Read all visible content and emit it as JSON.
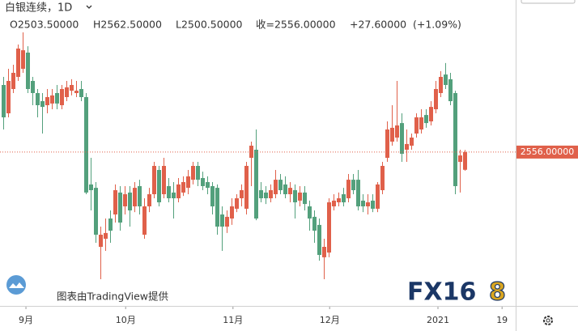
{
  "header": {
    "symbol": "白银连续，1D",
    "ohlc_legend": [
      "O2503.50000",
      "H2562.50000",
      "L2500.50000",
      "收=2556.00000",
      "+27.60000",
      "(+1.09%)"
    ]
  },
  "chart_data": {
    "type": "candlestick",
    "up_color": "#e0604a",
    "down_color": "#53a07c",
    "xlim": [
      -0.67,
      105.5
    ],
    "xticks": [
      {
        "value": 4.67,
        "label": "9月"
      },
      {
        "value": 25.2,
        "label": "10月"
      },
      {
        "value": 47.3,
        "label": "11月"
      },
      {
        "value": 67.2,
        "label": "12月"
      },
      {
        "value": 89.5,
        "label": "2021"
      },
      {
        "value": 102.7,
        "label": "19"
      }
    ],
    "ylim": [
      2107,
      3007
    ],
    "last_price": {
      "value": 2556,
      "label": "2556.00000"
    },
    "ohlc": [
      [
        2755,
        2779,
        2623,
        2659
      ],
      [
        2671,
        2803,
        2659,
        2767
      ],
      [
        2743,
        2815,
        2731,
        2791
      ],
      [
        2779,
        2875,
        2767,
        2863
      ],
      [
        2803,
        2911,
        2791,
        2858
      ],
      [
        2851,
        2870,
        2731,
        2743
      ],
      [
        2767,
        2779,
        2695,
        2731
      ],
      [
        2731,
        2743,
        2659,
        2695
      ],
      [
        2707,
        2731,
        2611,
        2690
      ],
      [
        2695,
        2743,
        2671,
        2719
      ],
      [
        2700,
        2743,
        2683,
        2724
      ],
      [
        2731,
        2755,
        2683,
        2700
      ],
      [
        2695,
        2755,
        2683,
        2743
      ],
      [
        2719,
        2767,
        2707,
        2748
      ],
      [
        2738,
        2772,
        2724,
        2755
      ],
      [
        2731,
        2767,
        2719,
        2738
      ],
      [
        2743,
        2767,
        2707,
        2719
      ],
      [
        2719,
        2731,
        2431,
        2436
      ],
      [
        2460,
        2539,
        2383,
        2443
      ],
      [
        2450,
        2467,
        2287,
        2311
      ],
      [
        2275,
        2335,
        2179,
        2311
      ],
      [
        2299,
        2359,
        2263,
        2316
      ],
      [
        2359,
        2383,
        2287,
        2323
      ],
      [
        2371,
        2460,
        2347,
        2443
      ],
      [
        2436,
        2455,
        2323,
        2347
      ],
      [
        2395,
        2455,
        2371,
        2431
      ],
      [
        2436,
        2455,
        2335,
        2383
      ],
      [
        2395,
        2467,
        2378,
        2450
      ],
      [
        2455,
        2474,
        2371,
        2395
      ],
      [
        2311,
        2419,
        2299,
        2395
      ],
      [
        2395,
        2450,
        2378,
        2431
      ],
      [
        2431,
        2527,
        2419,
        2515
      ],
      [
        2503,
        2515,
        2395,
        2407
      ],
      [
        2431,
        2539,
        2419,
        2515
      ],
      [
        2455,
        2479,
        2407,
        2419
      ],
      [
        2436,
        2467,
        2359,
        2419
      ],
      [
        2419,
        2479,
        2407,
        2460
      ],
      [
        2436,
        2484,
        2426,
        2467
      ],
      [
        2450,
        2503,
        2431,
        2484
      ],
      [
        2474,
        2527,
        2460,
        2515
      ],
      [
        2515,
        2527,
        2455,
        2474
      ],
      [
        2479,
        2498,
        2443,
        2455
      ],
      [
        2467,
        2484,
        2431,
        2450
      ],
      [
        2455,
        2467,
        2371,
        2395
      ],
      [
        2450,
        2460,
        2311,
        2335
      ],
      [
        2371,
        2395,
        2263,
        2335
      ],
      [
        2335,
        2383,
        2316,
        2364
      ],
      [
        2359,
        2419,
        2340,
        2395
      ],
      [
        2388,
        2431,
        2378,
        2419
      ],
      [
        2419,
        2460,
        2395,
        2443
      ],
      [
        2388,
        2527,
        2371,
        2515
      ],
      [
        2539,
        2587,
        2455,
        2575
      ],
      [
        2563,
        2623,
        2354,
        2359
      ],
      [
        2443,
        2467,
        2407,
        2419
      ],
      [
        2436,
        2455,
        2402,
        2419
      ],
      [
        2419,
        2460,
        2407,
        2443
      ],
      [
        2431,
        2503,
        2419,
        2474
      ],
      [
        2474,
        2491,
        2431,
        2443
      ],
      [
        2460,
        2484,
        2419,
        2431
      ],
      [
        2431,
        2467,
        2407,
        2450
      ],
      [
        2443,
        2460,
        2359,
        2407
      ],
      [
        2412,
        2455,
        2395,
        2436
      ],
      [
        2436,
        2455,
        2383,
        2402
      ],
      [
        2395,
        2412,
        2323,
        2359
      ],
      [
        2364,
        2383,
        2287,
        2323
      ],
      [
        2340,
        2359,
        2234,
        2251
      ],
      [
        2244,
        2299,
        2179,
        2275
      ],
      [
        2258,
        2419,
        2244,
        2407
      ],
      [
        2395,
        2431,
        2383,
        2412
      ],
      [
        2407,
        2436,
        2395,
        2419
      ],
      [
        2431,
        2450,
        2395,
        2407
      ],
      [
        2419,
        2491,
        2407,
        2474
      ],
      [
        2474,
        2491,
        2431,
        2443
      ],
      [
        2474,
        2503,
        2383,
        2395
      ],
      [
        2412,
        2431,
        2378,
        2395
      ],
      [
        2395,
        2431,
        2371,
        2407
      ],
      [
        2412,
        2431,
        2378,
        2388
      ],
      [
        2388,
        2467,
        2378,
        2460
      ],
      [
        2443,
        2527,
        2431,
        2515
      ],
      [
        2539,
        2647,
        2527,
        2623
      ],
      [
        2587,
        2695,
        2575,
        2628
      ],
      [
        2599,
        2767,
        2587,
        2635
      ],
      [
        2642,
        2671,
        2527,
        2551
      ],
      [
        2563,
        2623,
        2527,
        2580
      ],
      [
        2575,
        2611,
        2563,
        2599
      ],
      [
        2611,
        2671,
        2599,
        2659
      ],
      [
        2623,
        2683,
        2611,
        2659
      ],
      [
        2666,
        2683,
        2628,
        2642
      ],
      [
        2647,
        2707,
        2635,
        2690
      ],
      [
        2683,
        2767,
        2671,
        2743
      ],
      [
        2731,
        2796,
        2719,
        2779
      ],
      [
        2786,
        2820,
        2743,
        2755
      ],
      [
        2772,
        2791,
        2695,
        2707
      ],
      [
        2731,
        2738,
        2431,
        2455
      ],
      [
        2527,
        2563,
        2436,
        2546
      ],
      [
        2503.5,
        2562.5,
        2500.5,
        2556
      ]
    ]
  },
  "watermark": "图表由TradingView提供",
  "logo": [
    "FX16",
    "8"
  ]
}
